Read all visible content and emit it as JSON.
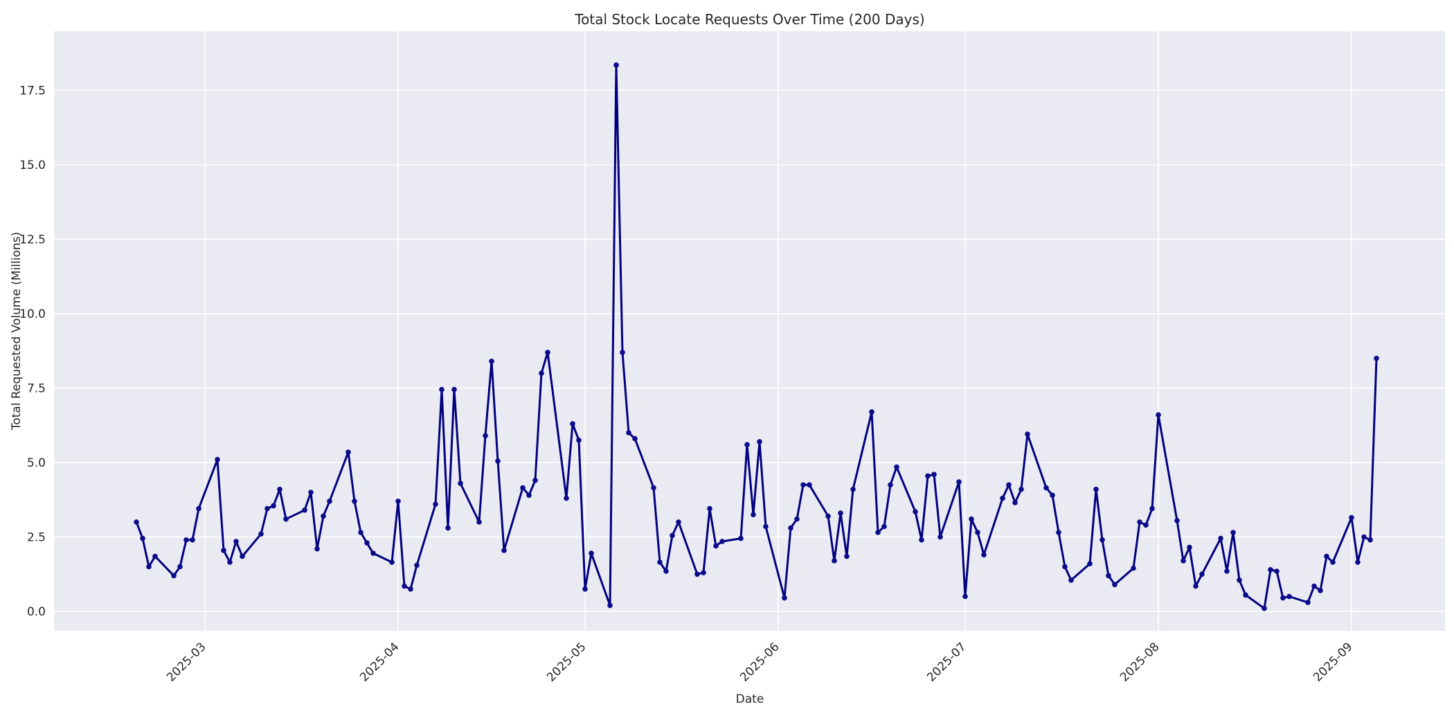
{
  "chart_data": {
    "type": "line",
    "title": "Total Stock Locate Requests Over Time (200 Days)",
    "xlabel": "Date",
    "ylabel": "Total Requested Volume (Millions)",
    "legend_position": "none",
    "grid": true,
    "style": "seaborn-darkgrid",
    "plot_bg_color": "#eaeaf2",
    "grid_color": "#ffffff",
    "line_color": "#000080",
    "marker_color": "#0b0b8b",
    "text_color": "#262626",
    "ylim": [
      -0.7,
      19.6
    ],
    "y_ticks": [
      0.0,
      2.5,
      5.0,
      7.5,
      10.0,
      12.5,
      15.0,
      17.5
    ],
    "y_tick_labels": [
      "0.0",
      "2.5",
      "5.0",
      "7.5",
      "10.0",
      "12.5",
      "15.0",
      "17.5"
    ],
    "x_ticks": [
      {
        "label": "2025-03",
        "date": "2025-03-01"
      },
      {
        "label": "2025-04",
        "date": "2025-04-01"
      },
      {
        "label": "2025-05",
        "date": "2025-05-01"
      },
      {
        "label": "2025-06",
        "date": "2025-06-01"
      },
      {
        "label": "2025-07",
        "date": "2025-07-01"
      },
      {
        "label": "2025-08",
        "date": "2025-08-01"
      },
      {
        "label": "2025-09",
        "date": "2025-09-01"
      }
    ],
    "x_range": {
      "start": "2025-02-18",
      "end": "2025-09-05"
    },
    "series": [
      {
        "name": "total-stock-locate-requests",
        "dates": [
          "2025-02-18",
          "2025-02-19",
          "2025-02-20",
          "2025-02-21",
          "2025-02-24",
          "2025-02-25",
          "2025-02-26",
          "2025-02-27",
          "2025-02-28",
          "2025-03-03",
          "2025-03-04",
          "2025-03-05",
          "2025-03-06",
          "2025-03-07",
          "2025-03-10",
          "2025-03-11",
          "2025-03-12",
          "2025-03-13",
          "2025-03-14",
          "2025-03-17",
          "2025-03-18",
          "2025-03-19",
          "2025-03-20",
          "2025-03-21",
          "2025-03-24",
          "2025-03-25",
          "2025-03-26",
          "2025-03-27",
          "2025-03-28",
          "2025-03-31",
          "2025-04-01",
          "2025-04-02",
          "2025-04-03",
          "2025-04-04",
          "2025-04-07",
          "2025-04-08",
          "2025-04-09",
          "2025-04-10",
          "2025-04-11",
          "2025-04-14",
          "2025-04-15",
          "2025-04-16",
          "2025-04-17",
          "2025-04-18",
          "2025-04-21",
          "2025-04-22",
          "2025-04-23",
          "2025-04-24",
          "2025-04-25",
          "2025-04-28",
          "2025-04-29",
          "2025-04-30",
          "2025-05-01",
          "2025-05-02",
          "2025-05-05",
          "2025-05-06",
          "2025-05-07",
          "2025-05-08",
          "2025-05-09",
          "2025-05-12",
          "2025-05-13",
          "2025-05-14",
          "2025-05-15",
          "2025-05-16",
          "2025-05-19",
          "2025-05-20",
          "2025-05-21",
          "2025-05-22",
          "2025-05-23",
          "2025-05-26",
          "2025-05-27",
          "2025-05-28",
          "2025-05-29",
          "2025-05-30",
          "2025-06-02",
          "2025-06-03",
          "2025-06-04",
          "2025-06-05",
          "2025-06-06",
          "2025-06-09",
          "2025-06-10",
          "2025-06-11",
          "2025-06-12",
          "2025-06-13",
          "2025-06-16",
          "2025-06-17",
          "2025-06-18",
          "2025-06-19",
          "2025-06-20",
          "2025-06-23",
          "2025-06-24",
          "2025-06-25",
          "2025-06-26",
          "2025-06-27",
          "2025-06-30",
          "2025-07-01",
          "2025-07-02",
          "2025-07-03",
          "2025-07-04",
          "2025-07-07",
          "2025-07-08",
          "2025-07-09",
          "2025-07-10",
          "2025-07-11",
          "2025-07-14",
          "2025-07-15",
          "2025-07-16",
          "2025-07-17",
          "2025-07-18",
          "2025-07-21",
          "2025-07-22",
          "2025-07-23",
          "2025-07-24",
          "2025-07-25",
          "2025-07-28",
          "2025-07-29",
          "2025-07-30",
          "2025-07-31",
          "2025-08-01",
          "2025-08-04",
          "2025-08-05",
          "2025-08-06",
          "2025-08-07",
          "2025-08-08",
          "2025-08-11",
          "2025-08-12",
          "2025-08-13",
          "2025-08-14",
          "2025-08-15",
          "2025-08-18",
          "2025-08-19",
          "2025-08-20",
          "2025-08-21",
          "2025-08-22",
          "2025-08-25",
          "2025-08-26",
          "2025-08-27",
          "2025-08-28",
          "2025-08-29",
          "2025-09-01",
          "2025-09-02",
          "2025-09-03",
          "2025-09-04",
          "2025-09-05"
        ],
        "values": [
          3.0,
          2.45,
          1.5,
          1.85,
          1.2,
          1.5,
          2.4,
          2.4,
          3.45,
          5.1,
          2.05,
          1.65,
          2.35,
          1.85,
          2.6,
          3.45,
          3.55,
          4.1,
          3.1,
          3.4,
          4.0,
          2.1,
          3.2,
          3.7,
          5.35,
          3.7,
          2.65,
          2.3,
          1.95,
          1.65,
          3.7,
          0.85,
          0.75,
          1.55,
          3.6,
          7.45,
          2.8,
          7.45,
          4.3,
          3.0,
          5.9,
          8.4,
          5.05,
          2.05,
          4.15,
          3.9,
          4.4,
          8.0,
          8.7,
          3.8,
          6.3,
          5.75,
          0.75,
          1.95,
          0.2,
          18.35,
          8.7,
          6.0,
          5.8,
          4.15,
          1.65,
          1.35,
          2.55,
          3.0,
          1.25,
          1.3,
          3.45,
          2.2,
          2.35,
          2.45,
          5.6,
          3.25,
          5.7,
          2.85,
          0.45,
          2.8,
          3.1,
          4.25,
          4.25,
          3.2,
          1.7,
          3.3,
          1.85,
          4.1,
          6.7,
          2.65,
          2.85,
          4.25,
          4.85,
          3.35,
          2.4,
          4.55,
          4.6,
          2.5,
          4.35,
          0.5,
          3.1,
          2.65,
          1.9,
          3.8,
          4.25,
          3.65,
          4.1,
          5.95,
          4.15,
          3.9,
          2.65,
          1.5,
          1.05,
          1.6,
          4.1,
          2.4,
          1.2,
          0.9,
          1.45,
          3.0,
          2.9,
          3.45,
          6.6,
          3.05,
          1.7,
          2.15,
          0.85,
          1.25,
          2.45,
          1.35,
          2.65,
          1.05,
          0.55,
          0.1,
          1.4,
          1.35,
          0.45,
          0.5,
          0.3,
          0.85,
          0.7,
          1.85,
          1.65,
          3.15,
          1.65,
          2.5,
          2.4,
          8.5
        ]
      }
    ]
  }
}
